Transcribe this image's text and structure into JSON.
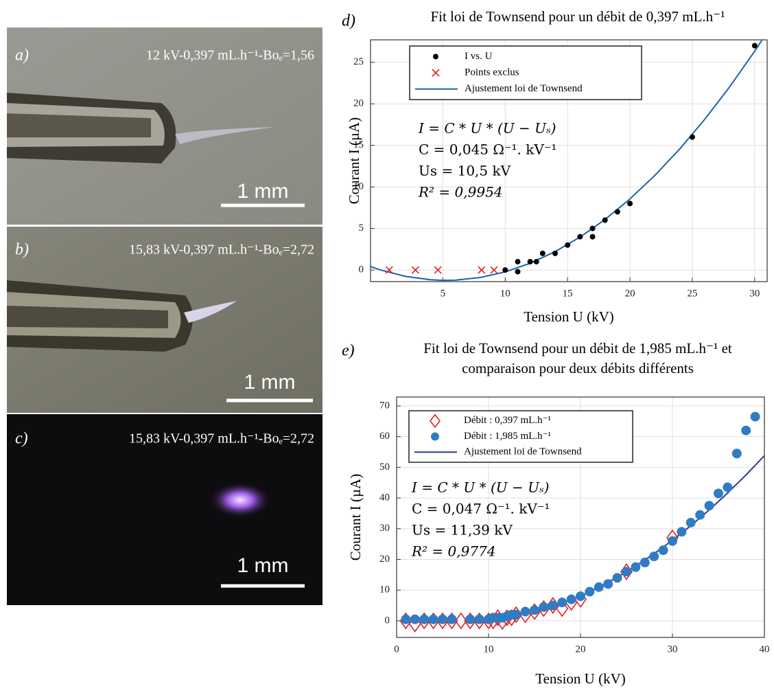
{
  "photos": [
    {
      "label": "a)",
      "caption": "12 kV-0,397 mL.h⁻¹-Boₑ=1,56",
      "scale_bar": "1 mm"
    },
    {
      "label": "b)",
      "caption": "15,83 kV-0,397 mL.h⁻¹-Boₑ=2,72",
      "scale_bar": "1 mm"
    },
    {
      "label": "c)",
      "caption": "15,83 kV-0,397 mL.h⁻¹-Boₑ=2,72",
      "scale_bar": "1 mm"
    }
  ],
  "chart_data": [
    {
      "type": "scatter",
      "label": "d)",
      "title": [
        "Fit loi de Townsend pour un débit de 0,397 mL.h⁻¹"
      ],
      "xlabel": "Tension U (kV)",
      "ylabel": "Courant I (µA)",
      "xlim": [
        -0.8,
        31
      ],
      "ylim": [
        -1.4,
        27.7
      ],
      "xticks": [
        5,
        10,
        15,
        20,
        25,
        30
      ],
      "yticks": [
        0,
        5,
        10,
        15,
        20,
        25
      ],
      "grid": true,
      "legend": "upper left",
      "series": [
        {
          "name": "I vs. U",
          "color": "#000000",
          "marker": "dot",
          "x": [
            10,
            11,
            11,
            12,
            12.5,
            13,
            14,
            15,
            16,
            17,
            17,
            18,
            19,
            20,
            25,
            30
          ],
          "values": [
            0,
            1,
            -0.2,
            1,
            1,
            2,
            2,
            3,
            4,
            5,
            4,
            6,
            7,
            8,
            16,
            27
          ]
        },
        {
          "name": "Points exclus",
          "color": "#e02020",
          "marker": "x",
          "x": [
            0.7,
            2.8,
            4.6,
            8.1,
            9.1
          ],
          "values": [
            0,
            0,
            0,
            0,
            0
          ]
        },
        {
          "name": "Ajustement loi de Townsend",
          "color": "#1c62ad",
          "x": [
            -0.8,
            0,
            2,
            4,
            5,
            6,
            8,
            10,
            12,
            14,
            16,
            18,
            20,
            22,
            24,
            26,
            28,
            30,
            31
          ],
          "values": [
            0.41,
            0,
            -0.77,
            -1.17,
            -1.24,
            -1.22,
            -0.9,
            -0.23,
            0.81,
            2.21,
            3.96,
            6.08,
            8.55,
            11.39,
            14.58,
            18.14,
            22.05,
            26.33,
            28.6
          ]
        }
      ],
      "annotations": [
        "I = C * U * (U − Uₛ)",
        "C = 0,045 Ω⁻¹. kV⁻¹",
        "Us = 10,5 kV",
        "R² = 0,9954"
      ]
    },
    {
      "type": "scatter",
      "label": "e)",
      "title": [
        "Fit loi de Townsend pour un débit de 1,985 mL.h⁻¹ et",
        "comparaison pour deux débits différents"
      ],
      "xlabel": "Tension U (kV)",
      "ylabel": "Courant I (µA)",
      "xlim": [
        0,
        40
      ],
      "ylim": [
        -5.4,
        72.9
      ],
      "xticks": [
        0,
        10,
        20,
        30,
        40
      ],
      "yticks": [
        0,
        10,
        20,
        30,
        40,
        50,
        60,
        70
      ],
      "grid": true,
      "legend": "upper left",
      "series": [
        {
          "name": "Débit : 0,397 mL.h⁻¹",
          "color": "#e02020",
          "marker": "diamond",
          "x": [
            1,
            2,
            3,
            4,
            5,
            6,
            7,
            8,
            9,
            10,
            10.5,
            11,
            11.5,
            12,
            12.5,
            13,
            14,
            15,
            16,
            17,
            18,
            19,
            20,
            25,
            30
          ],
          "values": [
            0,
            -1,
            0,
            0,
            0,
            0,
            0,
            0,
            0,
            0,
            0,
            1,
            -0.2,
            1,
            1,
            2,
            2,
            3,
            4,
            5,
            4,
            6,
            7,
            16,
            27
          ]
        },
        {
          "name": "Débit : 1,985 mL.h⁻¹",
          "color": "#2f7cc4",
          "marker": "circle",
          "x": [
            1,
            2,
            3,
            4,
            5,
            6,
            8,
            9,
            10,
            10.5,
            11,
            11.5,
            12,
            12.5,
            13,
            14,
            15,
            16,
            17,
            18,
            19,
            20,
            21,
            22,
            23,
            24,
            25,
            26,
            27,
            28,
            29,
            30,
            31,
            32,
            33,
            34,
            35,
            36,
            37,
            38,
            39
          ],
          "values": [
            0.5,
            0.5,
            0.5,
            0.5,
            0.5,
            0.5,
            0.5,
            0.5,
            0.5,
            1,
            1,
            1,
            1.5,
            2,
            2,
            3,
            3.5,
            4.5,
            5,
            6,
            7,
            8,
            9.5,
            11,
            12,
            14,
            16,
            17.5,
            19,
            21,
            23,
            26,
            29,
            32,
            34.5,
            37.5,
            41.5,
            43.5,
            54.5,
            62,
            66.5
          ]
        },
        {
          "name": "Ajustement loi de Townsend",
          "color": "#2e3a8c",
          "x": [
            20,
            22,
            24,
            26,
            28,
            30,
            32,
            34,
            36,
            38,
            40
          ],
          "values": [
            8.09,
            10.97,
            14.22,
            17.85,
            21.86,
            26.24,
            31.0,
            36.13,
            41.64,
            47.53,
            53.79
          ]
        }
      ],
      "annotations": [
        "I = C * U * (U − Uₛ)",
        "C = 0,047 Ω⁻¹. kV⁻¹",
        "Us = 11,39 kV",
        "R² = 0,9774"
      ]
    }
  ]
}
